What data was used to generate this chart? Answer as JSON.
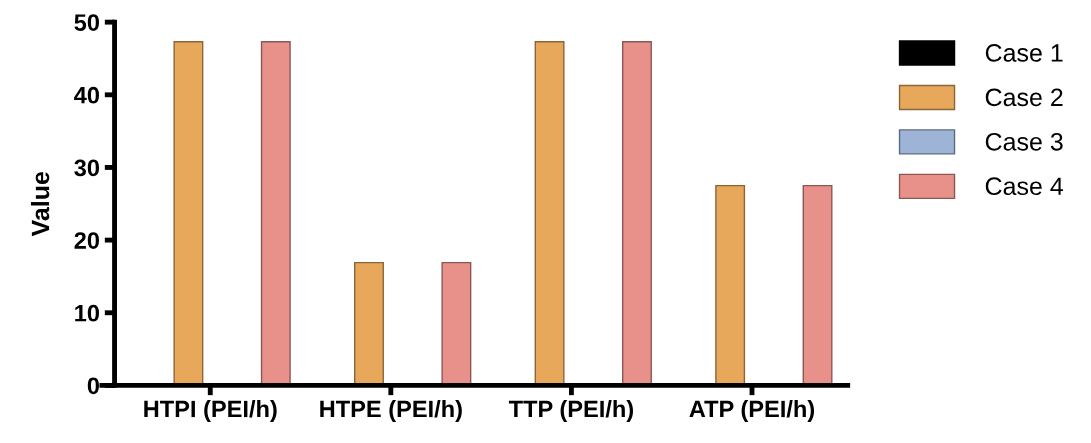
{
  "chart_data": {
    "type": "bar",
    "ylabel": "Value",
    "categories": [
      "HTPI (PEI/h)",
      "HTPE (PEI/h)",
      "TTP (PEI/h)",
      "ATP (PEI/h)"
    ],
    "series": [
      {
        "name": "Case 1",
        "color": "#000000",
        "values": [
          0,
          0,
          0,
          0
        ]
      },
      {
        "name": "Case 2",
        "color": "#e8a85c",
        "values": [
          47.3,
          16.9,
          47.3,
          27.5
        ]
      },
      {
        "name": "Case 3",
        "color": "#9db4d6",
        "values": [
          0,
          0,
          0,
          0
        ]
      },
      {
        "name": "Case 4",
        "color": "#e8918b",
        "values": [
          47.3,
          16.9,
          47.3,
          27.5
        ]
      }
    ],
    "ylim": [
      0,
      50
    ],
    "yticks": [
      0,
      10,
      20,
      30,
      40,
      50
    ],
    "grid": false,
    "legend": "top right"
  }
}
